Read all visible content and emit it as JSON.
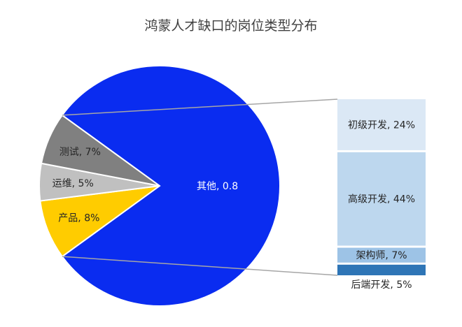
{
  "chart_data": {
    "type": "bar-of-pie",
    "title": "鸿蒙人才缺口的岗位类型分布",
    "pie": {
      "slices": [
        {
          "name": "其他",
          "value": 0.8,
          "label": "其他, 0.8",
          "color": "#0a2cf0"
        },
        {
          "name": "产品",
          "value": 0.08,
          "label": "产品, 8%",
          "color": "#ffcc00"
        },
        {
          "name": "运维",
          "value": 0.05,
          "label": "运维, 5%",
          "color": "#c0c0c0"
        },
        {
          "name": "测试",
          "value": 0.07,
          "label": "测试, 7%",
          "color": "#808080"
        }
      ]
    },
    "bar": {
      "segments": [
        {
          "name": "初级开发",
          "value": 0.24,
          "label": "初级开发, 24%",
          "color": "#dbe8f5"
        },
        {
          "name": "高级开发",
          "value": 0.44,
          "label": "高级开发, 44%",
          "color": "#bdd7ee"
        },
        {
          "name": "架构师",
          "value": 0.07,
          "label": "架构师, 7%",
          "color": "#9dc3e6"
        },
        {
          "name": "后端开发",
          "value": 0.05,
          "label": "后端开发, 5%",
          "color": "#2e75b6"
        }
      ]
    },
    "colors": {
      "connector": "#a6a6a6",
      "slice_border": "#ffffff"
    }
  }
}
